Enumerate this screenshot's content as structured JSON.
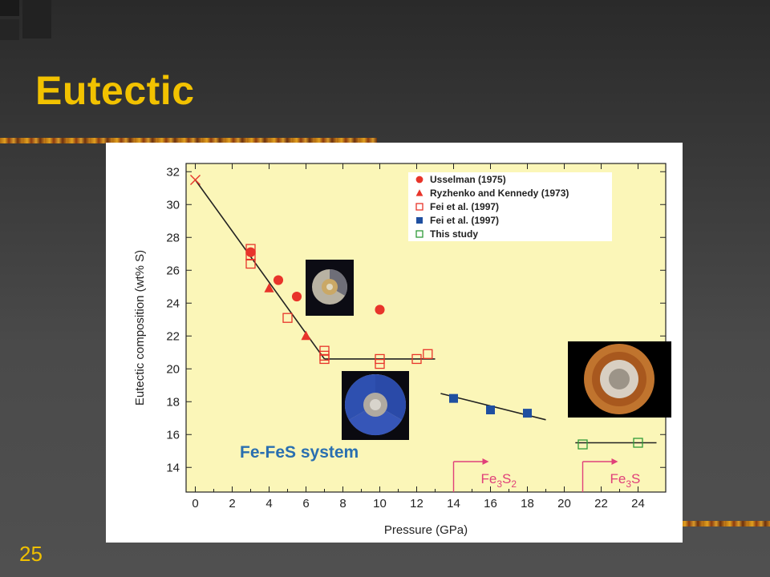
{
  "slide": {
    "title": "Eutectic",
    "page_number": "25"
  },
  "theme": {
    "title_color": "#f2c200",
    "plot_background": "#fbf6b8",
    "red": "#e8342a",
    "blue": "#1f4fa0",
    "green": "#2f9a38",
    "pink": "#e0407a"
  },
  "chart_data": {
    "type": "scatter",
    "xlabel": "Pressure (GPa)",
    "ylabel": "Eutectic composition (wt% S)",
    "xlim": [
      -0.5,
      25.5
    ],
    "ylim": [
      12.5,
      32.5
    ],
    "xticks": [
      0,
      2,
      4,
      6,
      8,
      10,
      12,
      14,
      16,
      18,
      20,
      22,
      24
    ],
    "yticks": [
      14,
      16,
      18,
      20,
      22,
      24,
      26,
      28,
      30,
      32
    ],
    "grid": false,
    "legend_position": "top-right",
    "annotation": "Fe-FeS system",
    "series": [
      {
        "name": "Usselman (1975)",
        "marker": "filled-circle",
        "color": "#e8342a",
        "points": [
          [
            3,
            27.1
          ],
          [
            4.5,
            25.4
          ],
          [
            5.5,
            24.4
          ],
          [
            10,
            23.6
          ]
        ]
      },
      {
        "name": "Ryzhenko and Kennedy (1973)",
        "marker": "filled-triangle",
        "color": "#e8342a",
        "points": [
          [
            4,
            24.9
          ],
          [
            6,
            22.0
          ]
        ]
      },
      {
        "name": "Fei et al. (1997)",
        "marker": "open-square",
        "color": "#e8342a",
        "points": [
          [
            3,
            27.3
          ],
          [
            3,
            26.9
          ],
          [
            3,
            26.4
          ],
          [
            5,
            23.1
          ],
          [
            7,
            21.1
          ],
          [
            7,
            20.8
          ],
          [
            7,
            20.6
          ],
          [
            10,
            20.6
          ],
          [
            10,
            20.3
          ],
          [
            12,
            20.6
          ],
          [
            12.6,
            20.9
          ]
        ]
      },
      {
        "name": "Fei et al. (1997)",
        "marker": "filled-square",
        "color": "#1f4fa0",
        "points": [
          [
            14,
            18.2
          ],
          [
            16,
            17.5
          ],
          [
            18,
            17.3
          ]
        ]
      },
      {
        "name": "This study",
        "marker": "open-square",
        "color": "#2f9a38",
        "points": [
          [
            21,
            15.4
          ],
          [
            24,
            15.5
          ]
        ]
      },
      {
        "name": "",
        "marker": "cross",
        "color": "#e8342a",
        "points": [
          [
            0,
            31.5
          ]
        ]
      }
    ],
    "fit_lines": [
      {
        "points": [
          [
            0,
            31.5
          ],
          [
            7,
            20.6
          ]
        ]
      },
      {
        "points": [
          [
            7,
            20.6
          ],
          [
            13,
            20.6
          ]
        ]
      },
      {
        "points": [
          [
            13.3,
            18.5
          ],
          [
            19,
            16.9
          ]
        ]
      },
      {
        "points": [
          [
            20.6,
            15.5
          ],
          [
            25,
            15.5
          ]
        ]
      }
    ],
    "phase_markers": [
      {
        "label_main": "Fe",
        "label_sub1": "3",
        "label_mid": "S",
        "label_sub2": "2",
        "x": 14
      },
      {
        "label_main": "Fe",
        "label_sub1": "3",
        "label_mid": "S",
        "label_sub2": "",
        "x": 21
      }
    ]
  }
}
